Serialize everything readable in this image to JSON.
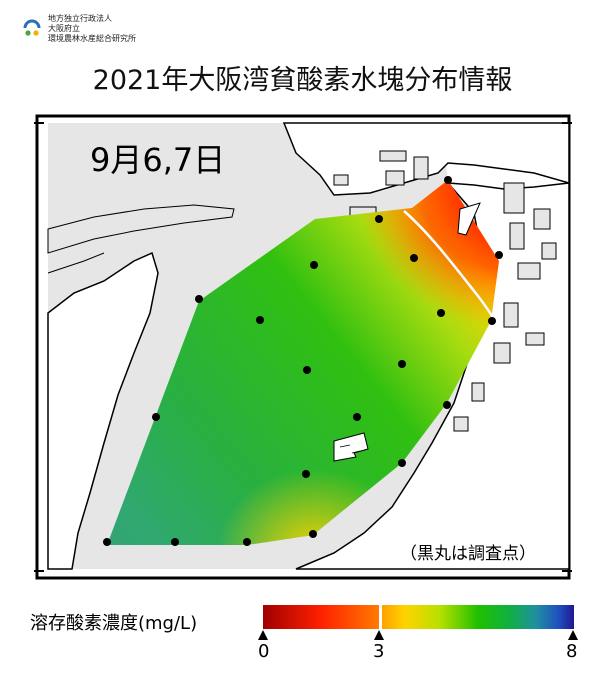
{
  "header": {
    "org_line1": "地方独立行政法人",
    "org_line2": "大阪府立",
    "org_line3": "環境農林水産総合研究所",
    "logo_icon": "institute-logo-icon"
  },
  "title": "2021年大阪湾貧酸素水塊分布情報",
  "map": {
    "date_label": "9月6,7日",
    "note": "（黒丸は調査点）",
    "colors": {
      "land": "#ffffff",
      "sea": "#e6e6e6",
      "coast": "#000000"
    }
  },
  "legend": {
    "label": "溶存酸素濃度(mg/L)",
    "min": 0,
    "threshold": 3,
    "max": 8,
    "tick_labels": [
      "0",
      "3",
      "8"
    ],
    "colors": [
      "#b00000",
      "#ff2000",
      "#ff8000",
      "#ffd000",
      "#c8e000",
      "#20c000",
      "#10b020",
      "#20a080",
      "#2060c0",
      "#201080"
    ]
  }
}
